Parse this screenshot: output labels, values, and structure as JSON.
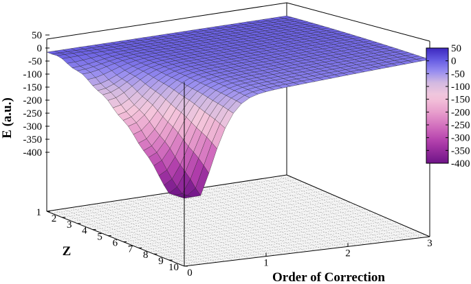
{
  "chart_data": {
    "type": "surface3d",
    "title": "",
    "xlabel": "Order of Correction",
    "ylabel": "Z",
    "zlabel": "E (a.u.)",
    "x_ticks": [
      "0",
      "1",
      "2",
      "3"
    ],
    "y_ticks": [
      "1",
      "2",
      "3",
      "4",
      "5",
      "6",
      "7",
      "8",
      "9",
      "10"
    ],
    "z_ticks": [
      "50",
      "0",
      "-50",
      "-100",
      "-150",
      "-200",
      "-250",
      "-300",
      "-350",
      "-400"
    ],
    "colorbar_ticks": [
      "50",
      "0",
      "-50",
      "-100",
      "-150",
      "-200",
      "-250",
      "-300",
      "-350",
      "-400"
    ],
    "xlim": [
      0,
      3
    ],
    "ylim": [
      1,
      10
    ],
    "zlim": [
      -400,
      50
    ],
    "colormap": [
      "#3a2aa0",
      "#6d63e6",
      "#a49ff0",
      "#d6b6d8",
      "#f2c4d8",
      "#e79ccc",
      "#cf6fbc",
      "#b040ab",
      "#8b1e96",
      "#6a0f85"
    ],
    "surface_note_z_at": [
      {
        "x": 0,
        "y": 1,
        "z": -2
      },
      {
        "x": 0,
        "y": 10,
        "z": -390
      },
      {
        "x": 1,
        "y": 10,
        "z": -60
      },
      {
        "x": 3,
        "y": 10,
        "z": -45
      },
      {
        "x": 3,
        "y": 1,
        "z": 0
      }
    ],
    "grid": true,
    "legend": "right"
  }
}
